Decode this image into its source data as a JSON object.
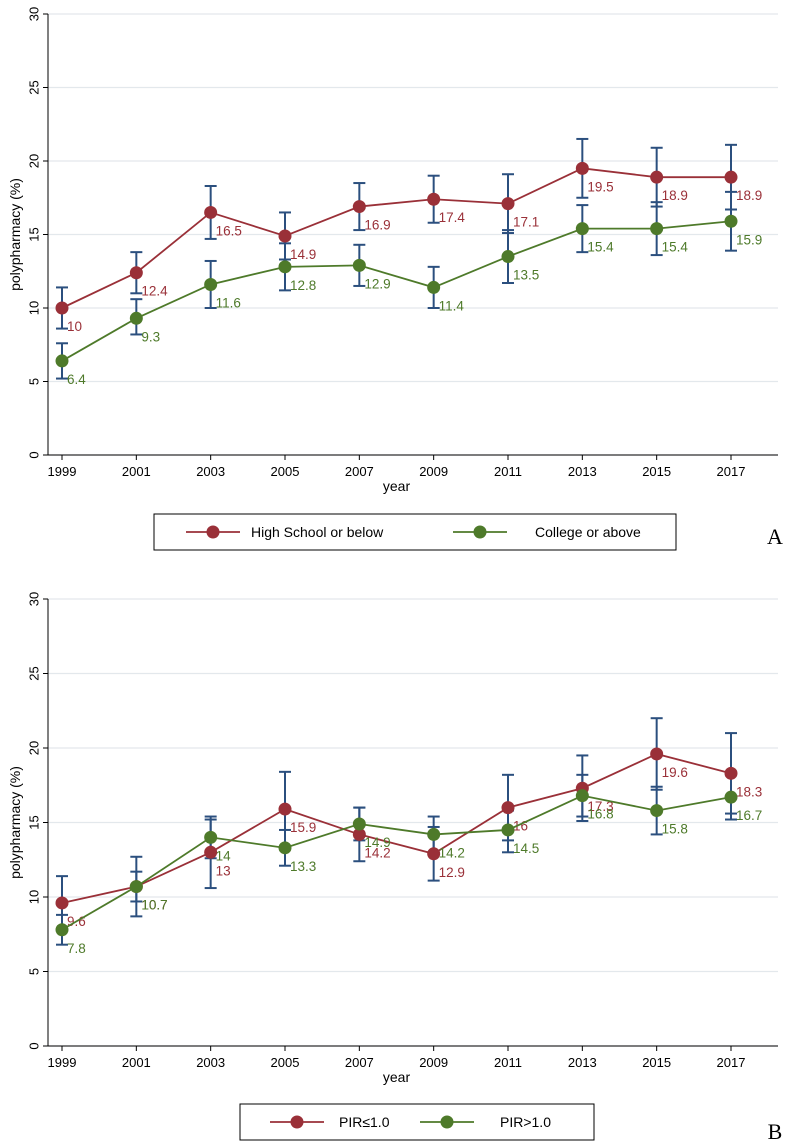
{
  "colors": {
    "series_red": "#9a3038",
    "series_green": "#4e7a2a",
    "error_bar": "#2b4f7e",
    "gridline": "#e3e8ec",
    "axis": "#000000"
  },
  "chart_data": [
    {
      "type": "line",
      "panel_label": "A",
      "title": "",
      "xlabel": "year",
      "ylabel": "polypharmacy (%)",
      "categories": [
        "1999",
        "2001",
        "2003",
        "2005",
        "2007",
        "2009",
        "2011",
        "2013",
        "2015",
        "2017"
      ],
      "ylim": [
        0,
        30
      ],
      "yticks": [
        0,
        5,
        10,
        15,
        20,
        25,
        30
      ],
      "grid": true,
      "legend_position": "bottom",
      "series": [
        {
          "name": "High School or below",
          "color": "#9a3038",
          "values": [
            10,
            12.4,
            16.5,
            14.9,
            16.9,
            17.4,
            17.1,
            19.5,
            18.9,
            18.9
          ],
          "labels": [
            "10",
            "12.4",
            "16.5",
            "14.9",
            "16.9",
            "17.4",
            "17.1",
            "19.5",
            "18.9",
            "18.9"
          ],
          "ci_low": [
            8.6,
            11.0,
            14.7,
            13.3,
            15.3,
            15.8,
            15.1,
            17.5,
            16.9,
            16.7
          ],
          "ci_high": [
            11.4,
            13.8,
            18.3,
            16.5,
            18.5,
            19.0,
            19.1,
            21.5,
            20.9,
            21.1
          ]
        },
        {
          "name": "College or above",
          "color": "#4e7a2a",
          "values": [
            6.4,
            9.3,
            11.6,
            12.8,
            12.9,
            11.4,
            13.5,
            15.4,
            15.4,
            15.9
          ],
          "labels": [
            "6.4",
            "9.3",
            "11.6",
            "12.8",
            "12.9",
            "11.4",
            "13.5",
            "15.4",
            "15.4",
            "15.9"
          ],
          "ci_low": [
            5.2,
            8.2,
            10.0,
            11.2,
            11.5,
            10.0,
            11.7,
            13.8,
            13.6,
            13.9
          ],
          "ci_high": [
            7.6,
            10.6,
            13.2,
            14.4,
            14.3,
            12.8,
            15.3,
            17.0,
            17.2,
            17.9
          ]
        }
      ]
    },
    {
      "type": "line",
      "panel_label": "B",
      "title": "",
      "xlabel": "year",
      "ylabel": "polypharmacy (%)",
      "categories": [
        "1999",
        "2001",
        "2003",
        "2005",
        "2007",
        "2009",
        "2011",
        "2013",
        "2015",
        "2017"
      ],
      "ylim": [
        0,
        30
      ],
      "yticks": [
        0,
        5,
        10,
        15,
        20,
        25,
        30
      ],
      "grid": true,
      "legend_position": "bottom",
      "series": [
        {
          "name": "PIR≤1.0",
          "color": "#9a3038",
          "values": [
            9.6,
            10.7,
            13,
            15.9,
            14.2,
            12.9,
            16,
            17.3,
            19.6,
            18.3
          ],
          "labels": [
            "9.6",
            "10.7",
            "13",
            "15.9",
            "14.2",
            "12.9",
            "16",
            "17.3",
            "19.6",
            "18.3"
          ],
          "ci_low": [
            7.8,
            8.7,
            10.6,
            13.4,
            12.4,
            11.1,
            13.8,
            15.1,
            17.2,
            15.6
          ],
          "ci_high": [
            11.4,
            12.7,
            15.4,
            18.4,
            16.0,
            14.7,
            18.2,
            19.5,
            22.0,
            21.0
          ]
        },
        {
          "name": "PIR>1.0",
          "color": "#4e7a2a",
          "values": [
            7.8,
            10.7,
            14,
            13.3,
            14.9,
            14.2,
            14.5,
            16.8,
            15.8,
            16.7
          ],
          "labels": [
            "7.8",
            "10.7",
            "14",
            "13.3",
            "14.9",
            "14.2",
            "14.5",
            "16.8",
            "15.8",
            "16.7"
          ],
          "ci_low": [
            6.8,
            9.7,
            12.6,
            12.1,
            13.8,
            13.0,
            13.0,
            15.4,
            14.2,
            15.2
          ],
          "ci_high": [
            8.8,
            11.7,
            15.2,
            14.5,
            16.0,
            15.4,
            15.8,
            18.2,
            17.4,
            18.2
          ]
        }
      ]
    }
  ]
}
